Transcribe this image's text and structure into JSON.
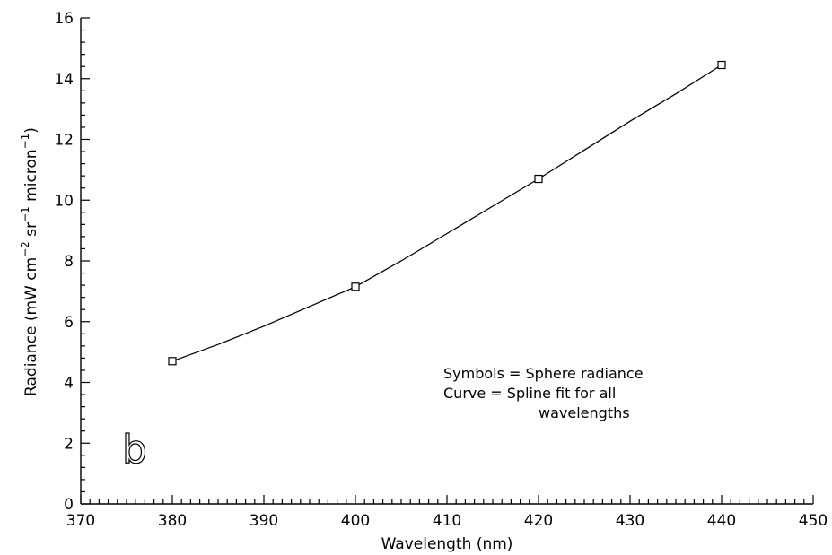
{
  "chart_data": {
    "type": "line",
    "x_label": "Wavelength (nm)",
    "y_label_parts": [
      "Radiance (mW cm",
      "−2",
      " sr",
      "−1",
      " micron",
      "−1",
      ")"
    ],
    "xlim": [
      370,
      450
    ],
    "ylim": [
      0,
      16
    ],
    "x_ticks": [
      370,
      380,
      390,
      400,
      410,
      420,
      430,
      440,
      450
    ],
    "y_ticks": [
      0,
      2,
      4,
      6,
      8,
      10,
      12,
      14,
      16
    ],
    "x_minor_step": 1,
    "y_minor_step": 0.4,
    "grid": false,
    "series": [
      {
        "name": "Sphere radiance",
        "render": "markers",
        "marker": "open-square",
        "x": [
          380,
          400,
          420,
          440
        ],
        "y": [
          4.7,
          7.15,
          10.7,
          14.45
        ]
      },
      {
        "name": "Spline fit",
        "render": "line",
        "x": [
          380,
          385,
          390,
          395,
          400,
          405,
          410,
          415,
          420,
          425,
          430,
          435,
          440
        ],
        "y": [
          4.7,
          5.25,
          5.85,
          6.5,
          7.15,
          8.0,
          8.9,
          9.8,
          10.7,
          11.65,
          12.6,
          13.5,
          14.45
        ]
      }
    ],
    "annotations": [
      "Symbols = Sphere radiance",
      "Curve = Spline fit for all",
      "wavelengths"
    ],
    "panel_label": "b"
  }
}
